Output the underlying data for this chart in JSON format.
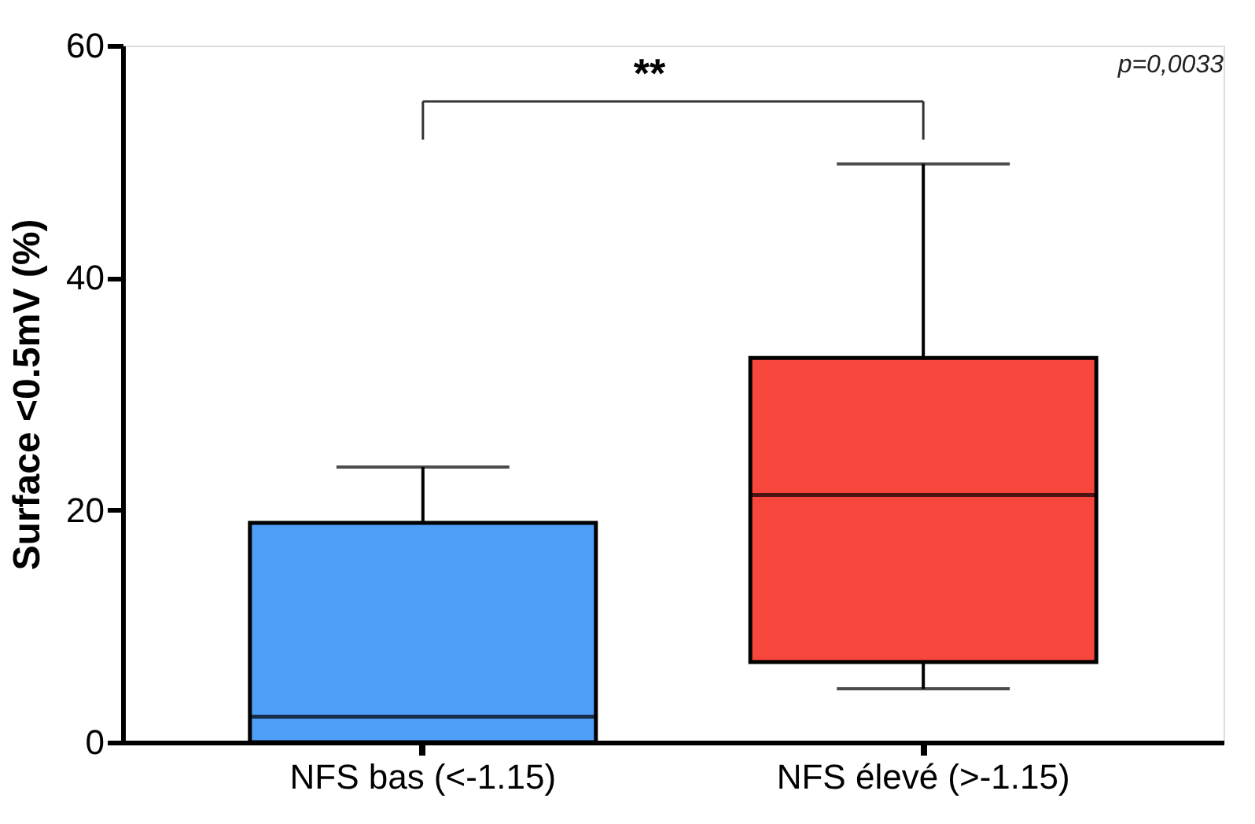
{
  "chart_data": {
    "type": "box",
    "ylabel": "Surface <0.5mV (%)",
    "categories": [
      "NFS bas (<-1.15)",
      "NFS élevé (>-1.15)"
    ],
    "colors": [
      "#4f9ef8",
      "#f7473c"
    ],
    "boxes": [
      {
        "low": 0,
        "q1": 0,
        "median": 2.2,
        "q3": 18.9,
        "high": 23.7
      },
      {
        "low": 4.6,
        "q1": 6.9,
        "median": 21.3,
        "q3": 33.1,
        "high": 49.8
      }
    ],
    "ylim": [
      0,
      60
    ],
    "yticks": [
      0,
      20,
      40,
      60
    ],
    "grid": false,
    "legend": false,
    "annotations": [
      "**",
      "p=0,0033"
    ]
  }
}
